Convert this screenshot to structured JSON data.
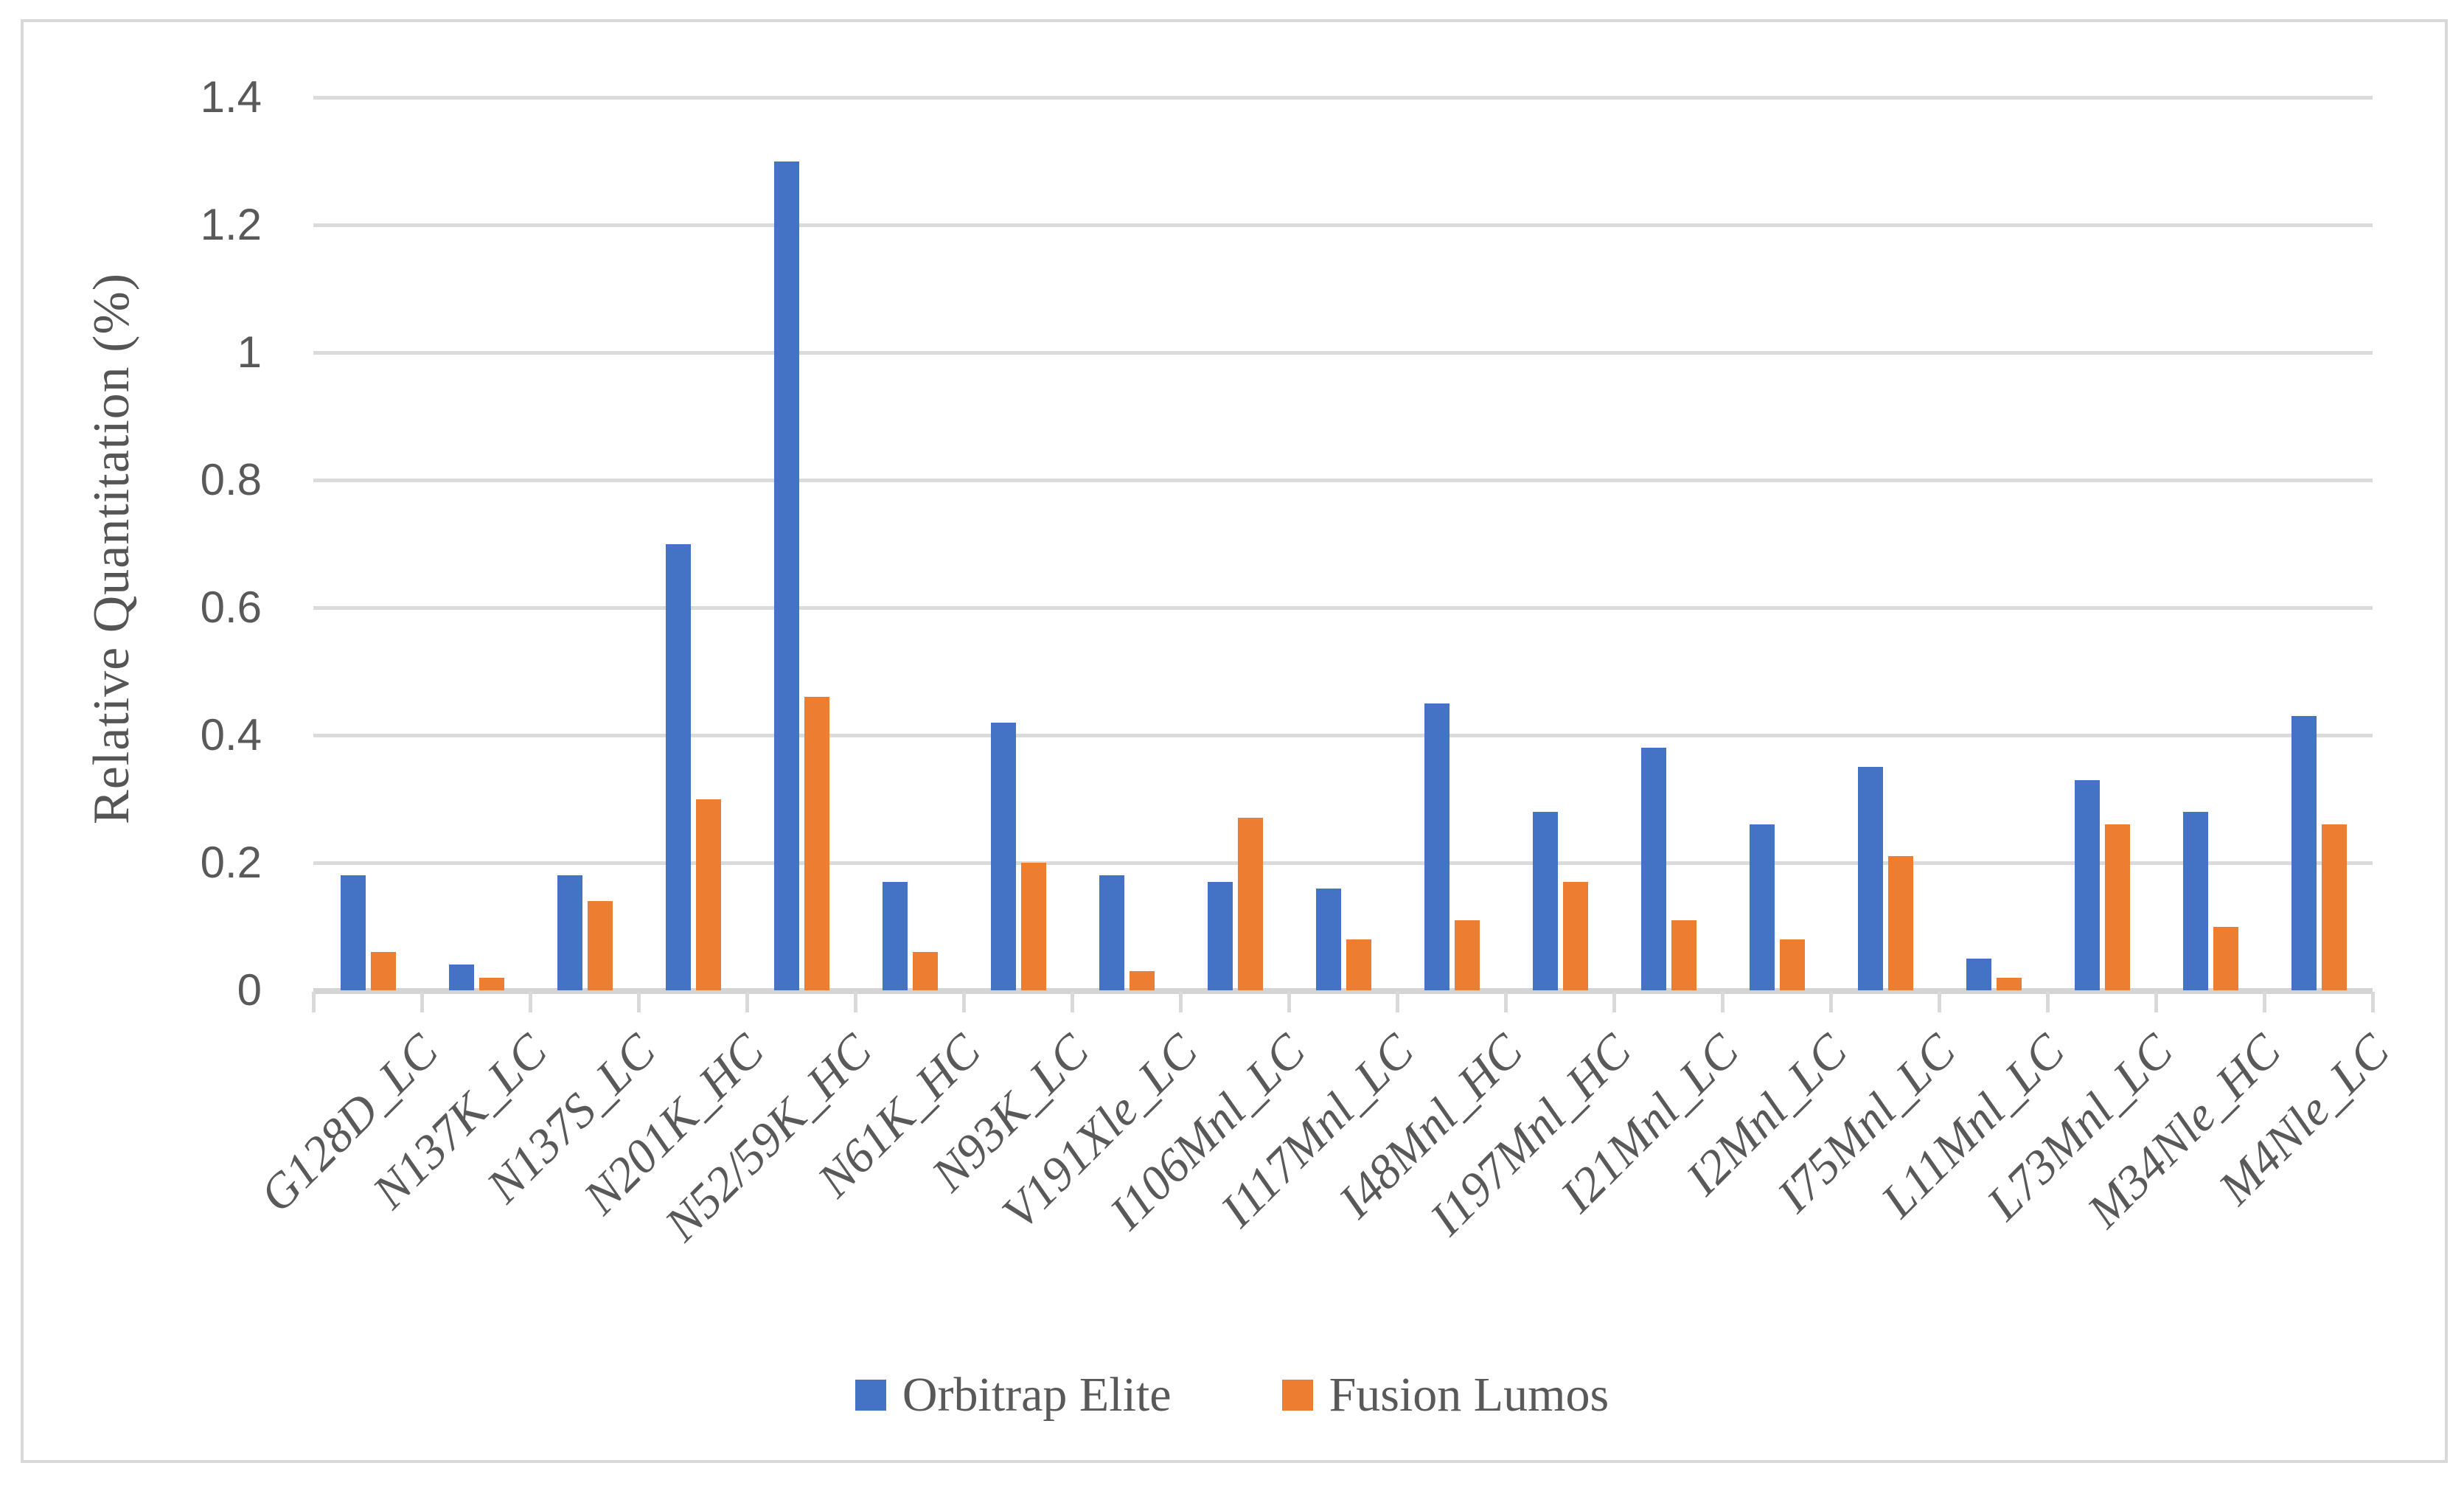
{
  "figure": {
    "background_color": "#FFFFFF",
    "border_color": "#D9D9D9",
    "gridline_color": "#DBDBDB",
    "axis_text_color": "#595959"
  },
  "chart_data": {
    "type": "bar",
    "title": "",
    "xlabel": "",
    "ylabel": "Relative Quantitation (%)",
    "ylim": [
      0,
      1.4
    ],
    "ytick_labels": [
      "0",
      "0.2",
      "0.4",
      "0.6",
      "0.8",
      "1",
      "1.2",
      "1.4"
    ],
    "grid": true,
    "legend_position": "bottom",
    "categories": [
      "G128D_LC",
      "N137K_LC",
      "N137S_LC",
      "N201K_HC",
      "N52/59K_HC",
      "N61K_HC",
      "N93K_LC",
      "V191Xle_LC",
      "I106Mnl_LC",
      "I117Mnl_LC",
      "I48Mnl_HC",
      "I197Mnl_HC",
      "I21Mnl_LC",
      "I2Mnl_LC",
      "I75Mnl_LC",
      "L11Mnl_LC",
      "L73Mnl_LC",
      "M34Nle_HC",
      "M4Nle_LC"
    ],
    "series": [
      {
        "name": "Orbitrap Elite",
        "color": "#4472C4",
        "values": [
          0.18,
          0.04,
          0.18,
          0.7,
          1.3,
          0.17,
          0.42,
          0.18,
          0.17,
          0.16,
          0.45,
          0.28,
          0.38,
          0.26,
          0.35,
          0.05,
          0.33,
          0.28,
          0.43
        ]
      },
      {
        "name": "Fusion Lumos",
        "color": "#ED7D31",
        "values": [
          0.06,
          0.02,
          0.14,
          0.3,
          0.46,
          0.06,
          0.2,
          0.03,
          0.27,
          0.08,
          0.11,
          0.17,
          0.11,
          0.08,
          0.21,
          0.02,
          0.26,
          0.1,
          0.26
        ]
      }
    ]
  }
}
